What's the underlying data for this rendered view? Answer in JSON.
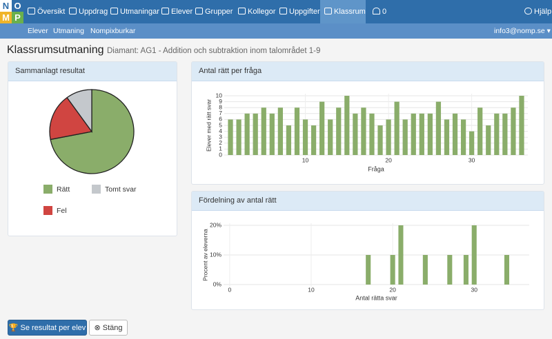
{
  "logo": [
    "N",
    "O",
    "M",
    "P"
  ],
  "nav": [
    "Översikt",
    "Uppdrag",
    "Utmaningar",
    "Elever",
    "Grupper",
    "Kollegor",
    "Uppgifter",
    "Klassrum"
  ],
  "notifications": "0",
  "help": "Hjälp",
  "subnav": [
    "Elever",
    "Utmaning",
    "Nompixburkar"
  ],
  "user": "info3@nomp.se",
  "header": {
    "title": "Klassrumsutmaning",
    "subtitle": "Diamant: AG1 - Addition och subtraktion inom talområdet 1-9"
  },
  "buttons": [
    "Se resultat per elev",
    "Stäng"
  ],
  "chart_data": [
    {
      "type": "pie",
      "title": "Sammanlagt resultat",
      "categories": [
        "Rätt",
        "Fel",
        "Tomt svar"
      ],
      "values": [
        72,
        18,
        10
      ],
      "colors": [
        "#8aad6a",
        "#d04541",
        "#c4c8cc"
      ]
    },
    {
      "type": "bar",
      "title": "Antal rätt per fråga",
      "x": [
        1,
        2,
        3,
        4,
        5,
        6,
        7,
        8,
        9,
        10,
        11,
        12,
        13,
        14,
        15,
        16,
        17,
        18,
        19,
        20,
        21,
        22,
        23,
        24,
        25,
        26,
        27,
        28,
        29,
        30,
        31,
        32,
        33,
        34,
        35,
        36
      ],
      "values": [
        6,
        6,
        7,
        7,
        8,
        7,
        8,
        5,
        8,
        6,
        5,
        9,
        6,
        8,
        10,
        7,
        8,
        7,
        5,
        6,
        9,
        6,
        7,
        7,
        7,
        9,
        6,
        7,
        6,
        4,
        8,
        5,
        7,
        7,
        8,
        10
      ],
      "color": "#8aad6a",
      "xlabel": "Fråga",
      "ylabel": "Elever med rätt svar",
      "xlim": [
        0.5,
        36.5
      ],
      "xticks": [
        10,
        20,
        30
      ],
      "ylim": [
        0,
        10
      ],
      "yticks": [
        0,
        1,
        2,
        3,
        4,
        5,
        6,
        7,
        8,
        9,
        10
      ],
      "grid": true
    },
    {
      "type": "bar",
      "title": "Fördelning av antal rätt",
      "x": [
        17,
        20,
        21,
        24,
        27,
        29,
        30,
        34
      ],
      "values": [
        10,
        10,
        20,
        10,
        10,
        10,
        20,
        10
      ],
      "color": "#8aad6a",
      "xlabel": "Antal rätta svar",
      "ylabel": "Procent av eleverna",
      "xlim": [
        -0.5,
        36.5
      ],
      "xticks": [
        0,
        10,
        20,
        30
      ],
      "ylim": [
        0,
        20
      ],
      "yticks": [
        {
          "value": 0,
          "label": "0%"
        },
        {
          "value": 10,
          "label": "10%"
        },
        {
          "value": 20,
          "label": "20%"
        }
      ],
      "grid": true
    }
  ]
}
